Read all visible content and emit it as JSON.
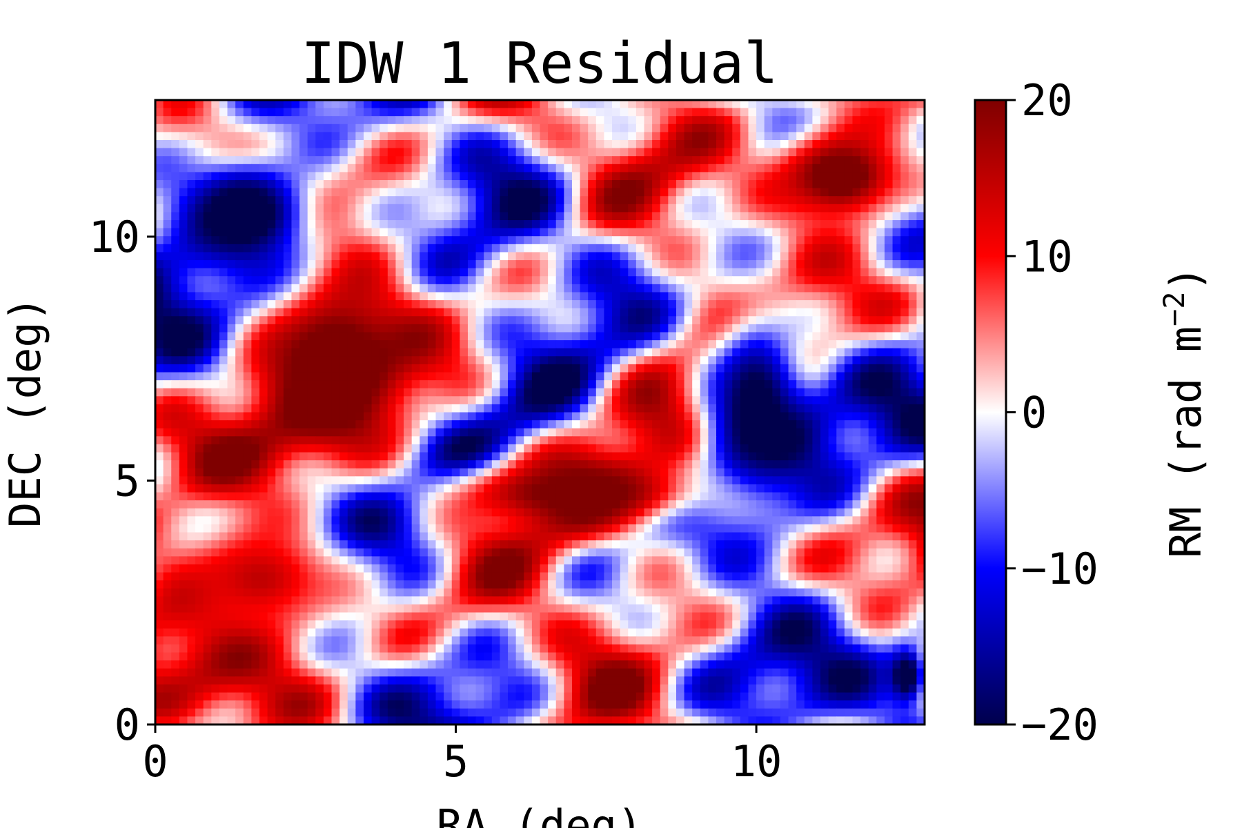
{
  "chart_data": {
    "type": "heatmap",
    "title": "IDW 1 Residual",
    "xlabel": "RA (deg)",
    "ylabel": "DEC (deg)",
    "xlim": [
      0,
      12.8
    ],
    "ylim": [
      0,
      12.8
    ],
    "xticks": [
      0,
      5,
      10
    ],
    "yticks": [
      0,
      5,
      10
    ],
    "xtick_labels": [
      "0",
      "5",
      "10"
    ],
    "ytick_labels": [
      "0",
      "5",
      "10"
    ],
    "grid": false,
    "colorbar": {
      "label": "RM (rad m−2)",
      "label_base": "RM (rad m",
      "label_exponent": "−2",
      "label_close": ")",
      "colormap": "seismic",
      "colors": [
        "#00004c",
        "#0000ff",
        "#ffffff",
        "#ff0000",
        "#7f0000"
      ],
      "vmin": -20,
      "vmax": 20,
      "ticks": [
        20,
        10,
        0,
        -10,
        -20
      ],
      "tick_labels": [
        "20",
        "10",
        "0",
        "−10",
        "−20"
      ]
    },
    "field_features": [
      {
        "sign": "positive",
        "ra_range": [
          1.5,
          4.5
        ],
        "dec_range": [
          5.5,
          9.5
        ],
        "rm": 20
      },
      {
        "sign": "positive",
        "ra_range": [
          10.0,
          12.8
        ],
        "dec_range": [
          10.0,
          12.5
        ],
        "rm": 20
      },
      {
        "sign": "negative",
        "ra_range": [
          0.0,
          3.0
        ],
        "dec_range": [
          9.0,
          12.0
        ],
        "rm": -20
      },
      {
        "sign": "negative",
        "ra_range": [
          9.0,
          11.0
        ],
        "dec_range": [
          4.0,
          9.0
        ],
        "rm": -18
      },
      {
        "sign": "negative",
        "ra_range": [
          12.2,
          12.8
        ],
        "dec_range": [
          0.4,
          1.6
        ],
        "rm": -20
      },
      {
        "sign": "positive",
        "ra_range": [
          4.5,
          9.5
        ],
        "dec_range": [
          4.0,
          5.5
        ],
        "rm": 17
      },
      {
        "sign": "positive",
        "ra_range": [
          0.0,
          3.5
        ],
        "dec_range": [
          1.5,
          4.5
        ],
        "rm": 12
      }
    ]
  }
}
